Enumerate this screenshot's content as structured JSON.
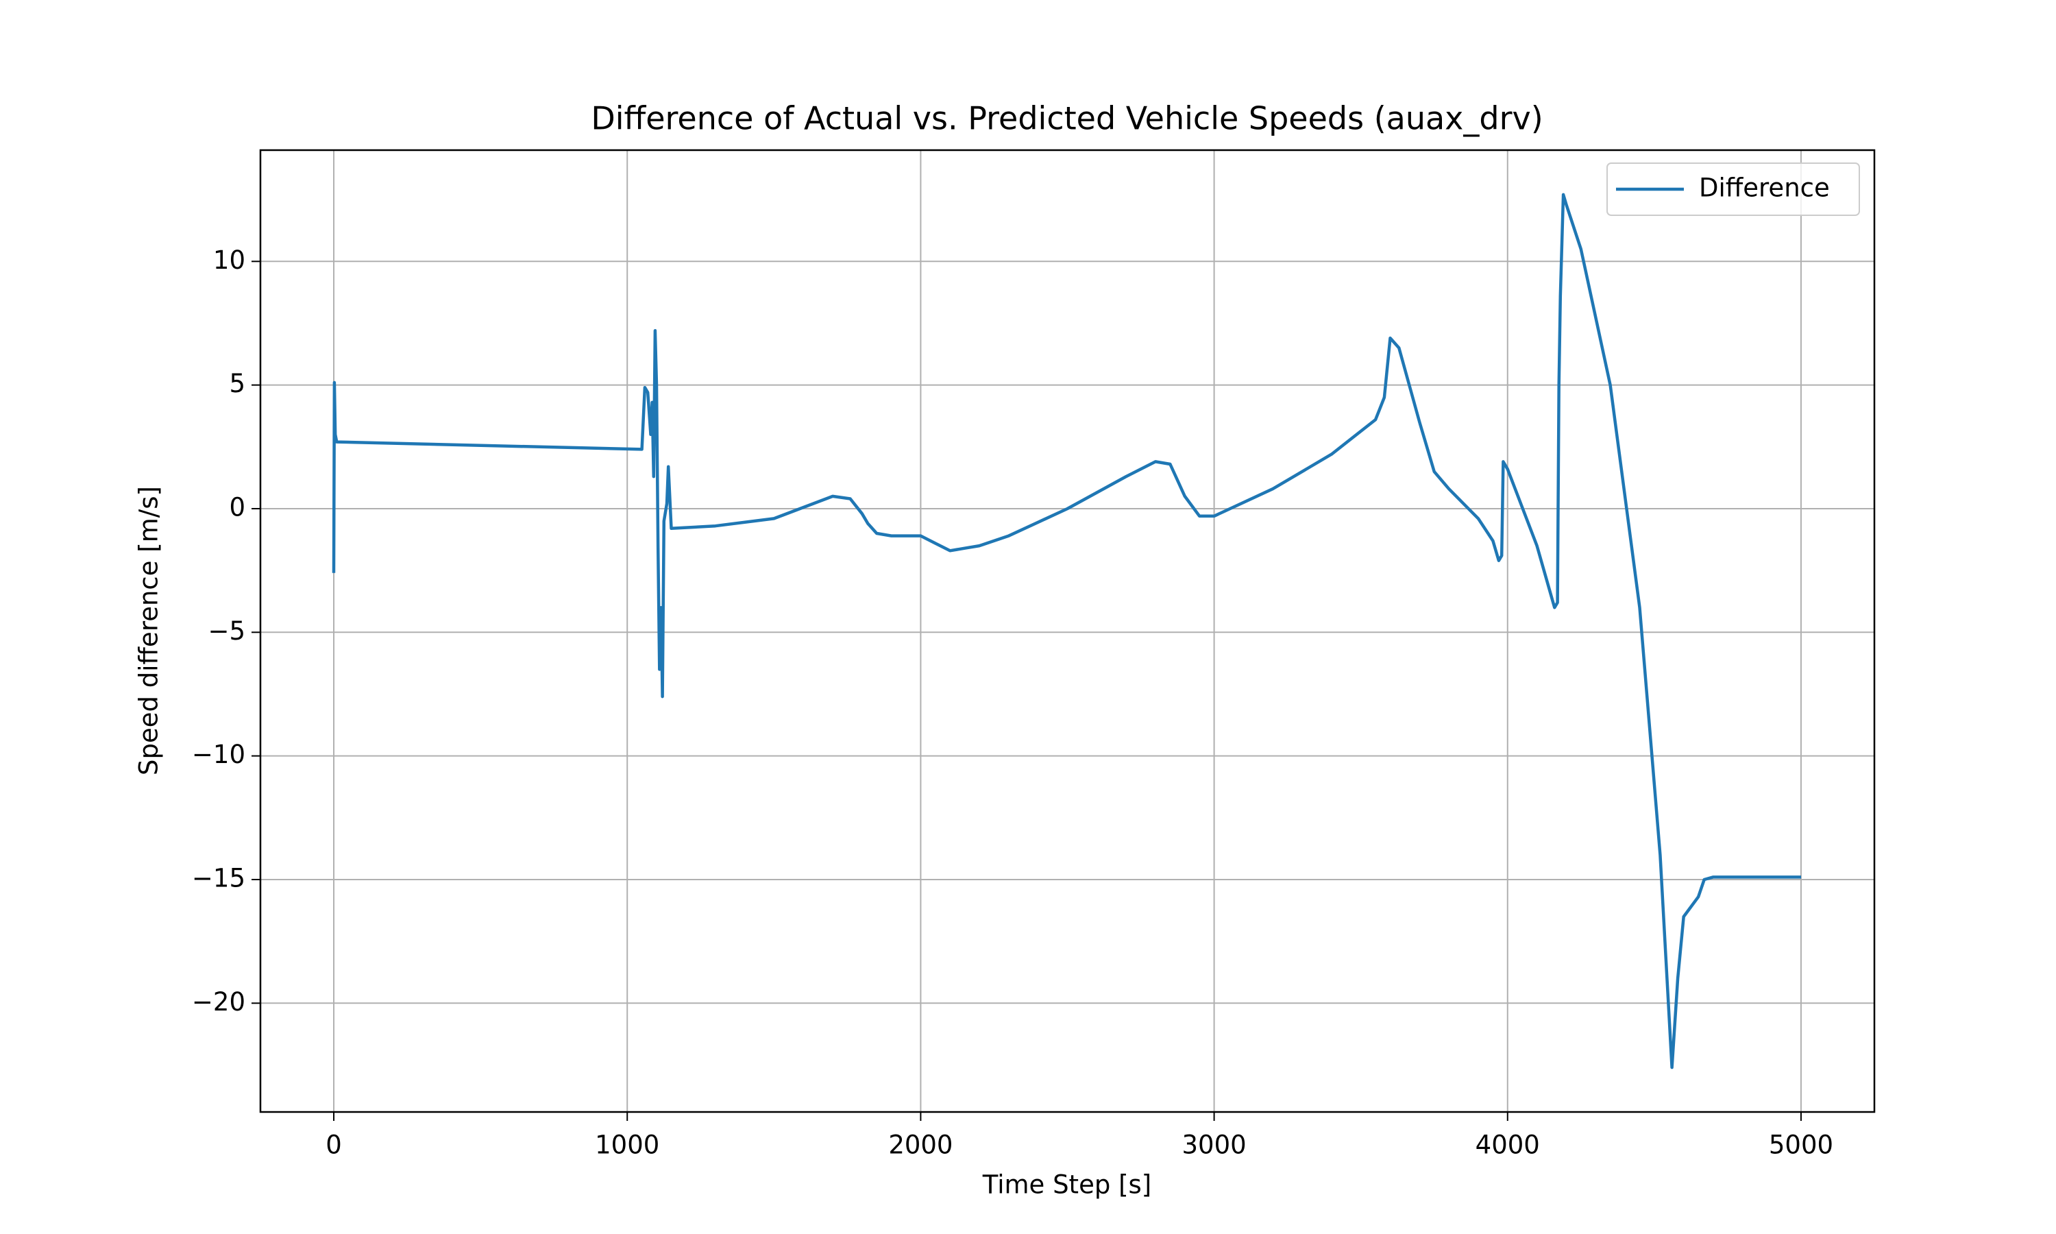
{
  "chart_data": {
    "type": "line",
    "title": "Difference of Actual vs. Predicted Vehicle Speeds (auax_drv)",
    "xlabel": "Time Step [s]",
    "ylabel": "Speed difference [m/s]",
    "x": [
      0,
      2,
      5,
      10,
      1050,
      1060,
      1070,
      1080,
      1085,
      1090,
      1095,
      1100,
      1105,
      1110,
      1115,
      1120,
      1125,
      1135,
      1140,
      1150,
      1300,
      1500,
      1700,
      1760,
      1800,
      1820,
      1850,
      1900,
      2000,
      2050,
      2100,
      2150,
      2200,
      2300,
      2500,
      2700,
      2800,
      2850,
      2900,
      2950,
      3000,
      3200,
      3400,
      3550,
      3580,
      3600,
      3630,
      3700,
      3750,
      3800,
      3900,
      3950,
      3970,
      3980,
      3985,
      4000,
      4100,
      4160,
      4170,
      4175,
      4180,
      4190,
      4200,
      4250,
      4350,
      4450,
      4520,
      4560,
      4580,
      4600,
      4650,
      4670,
      4700,
      5000
    ],
    "series": [
      {
        "name": "Difference",
        "color": "#1f77b4",
        "values": [
          -2.6,
          5.1,
          3.0,
          2.7,
          2.4,
          4.9,
          4.7,
          3.0,
          4.3,
          1.3,
          7.2,
          5.0,
          -1.6,
          -6.5,
          -4.0,
          -7.6,
          -0.5,
          0.2,
          1.7,
          -0.8,
          -0.7,
          -0.4,
          0.5,
          0.4,
          -0.2,
          -0.6,
          -1.0,
          -1.1,
          -1.1,
          -1.4,
          -1.7,
          -1.6,
          -1.5,
          -1.1,
          0.0,
          1.3,
          1.9,
          1.8,
          0.5,
          -0.3,
          -0.3,
          0.8,
          2.2,
          3.6,
          4.5,
          6.9,
          6.5,
          3.5,
          1.5,
          0.8,
          -0.4,
          -1.3,
          -2.1,
          -1.9,
          1.9,
          1.6,
          -1.5,
          -4.0,
          -3.8,
          5.0,
          8.6,
          12.7,
          12.3,
          10.5,
          5.0,
          -4.0,
          -14.0,
          -22.6,
          -19.0,
          -16.5,
          -15.7,
          -15.0,
          -14.9,
          -14.9
        ]
      }
    ],
    "xlim": [
      -250,
      5250
    ],
    "ylim": [
      -24.4,
      14.5
    ],
    "xticks": [
      0,
      1000,
      2000,
      3000,
      4000,
      5000
    ],
    "yticks": [
      {
        "value": -20,
        "label": "−20"
      },
      {
        "value": -15,
        "label": "−15"
      },
      {
        "value": -10,
        "label": "−10"
      },
      {
        "value": -5,
        "label": "−5"
      },
      0,
      5,
      10
    ],
    "grid": true,
    "legend": "upper right"
  }
}
